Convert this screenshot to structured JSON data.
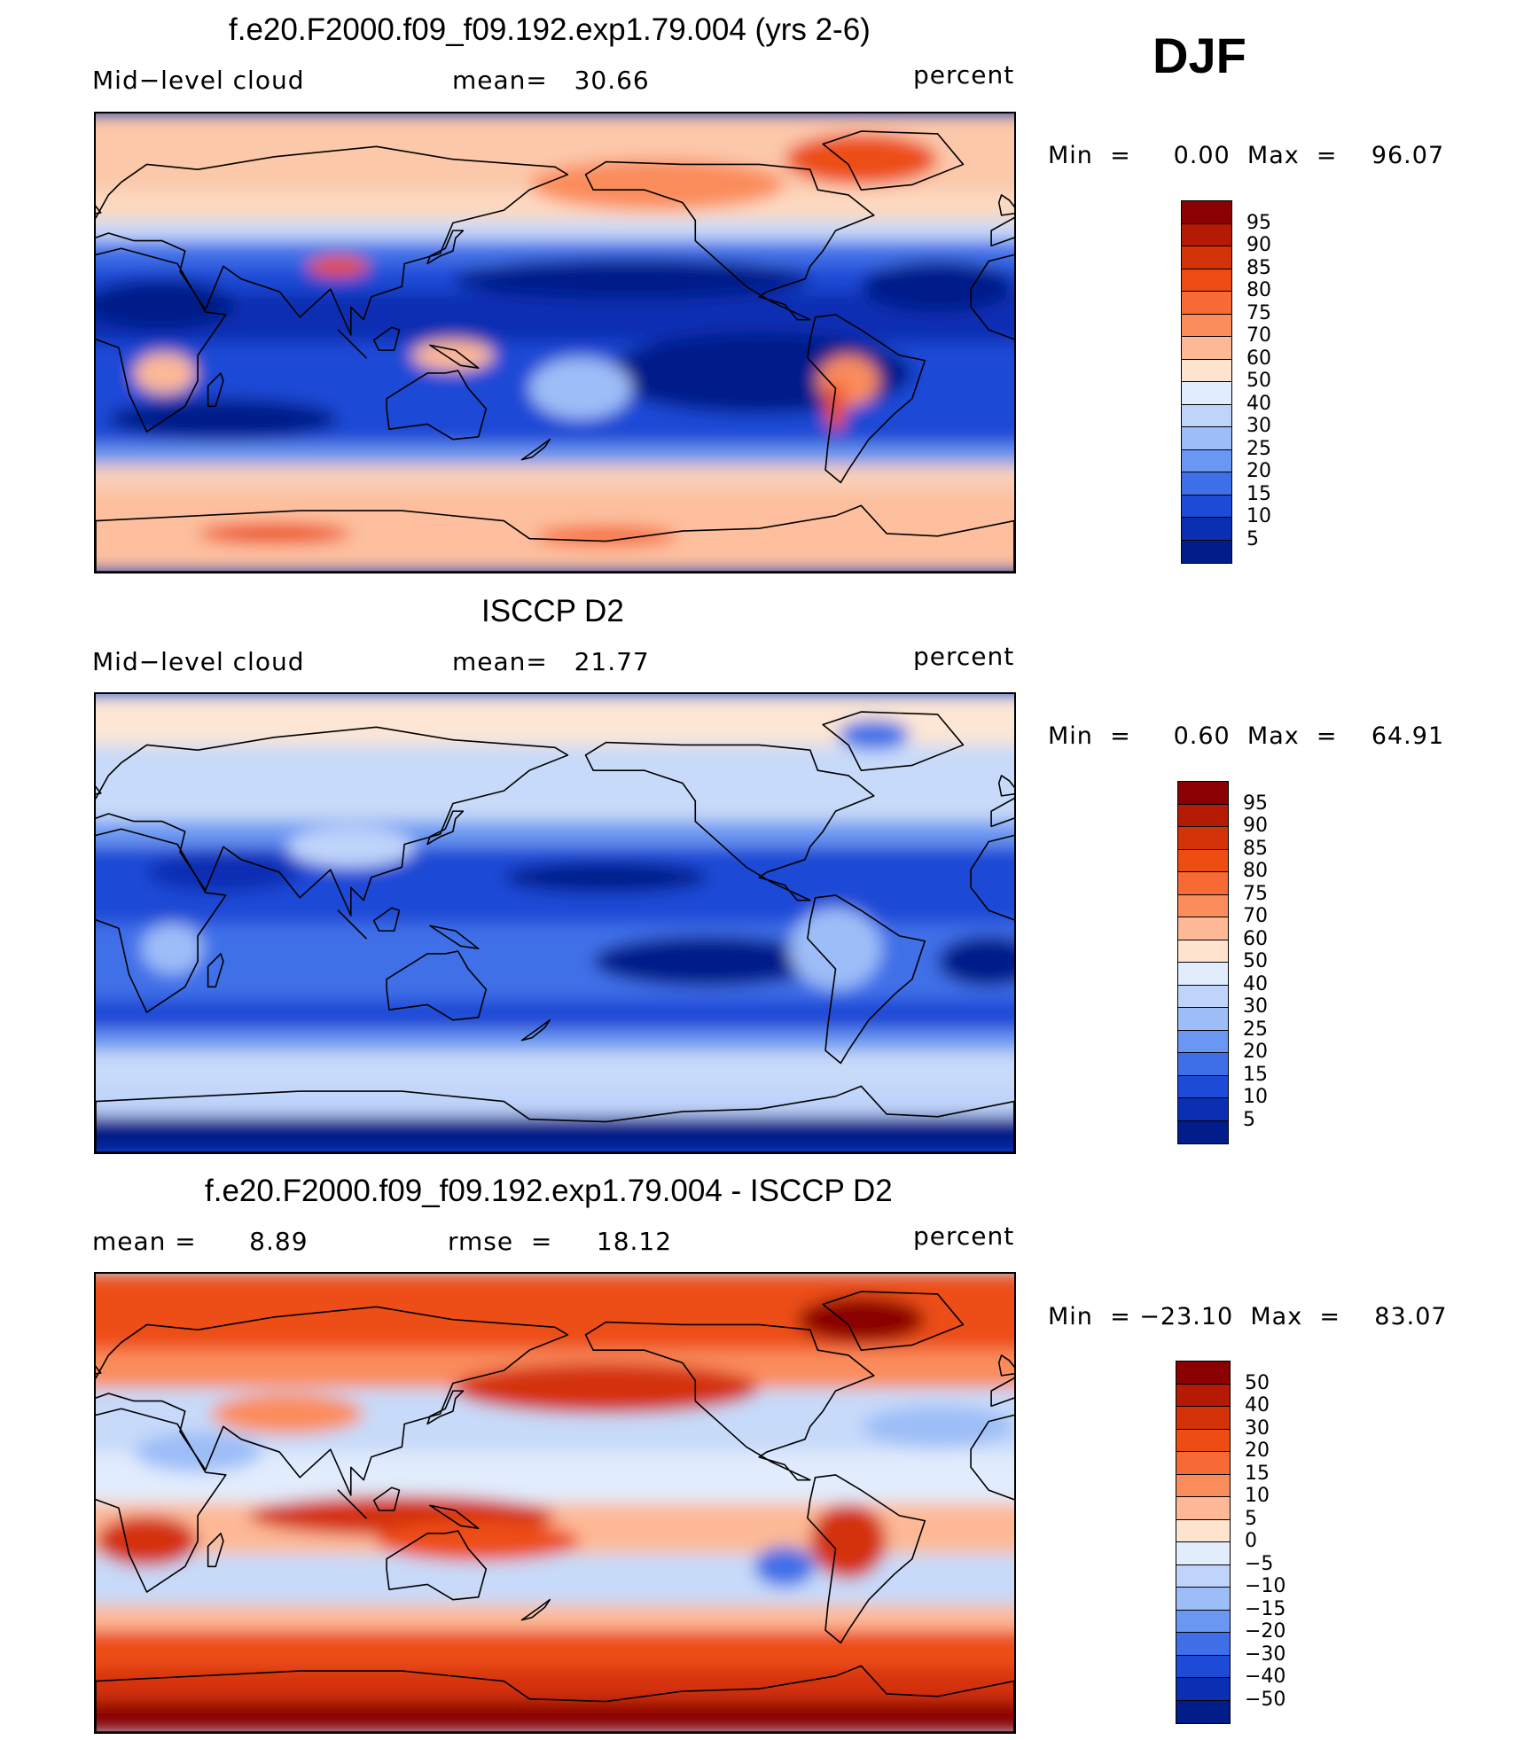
{
  "season": "DJF",
  "panels": [
    {
      "id": "model",
      "title": "f.e20.F2000.f09_f09.192.exp1.79.004 (yrs 2-6)",
      "left_label": "Mid−level cloud",
      "center_label": "mean=   30.66",
      "right_label": "percent",
      "minmax": "Min  =     0.00  Max  =    96.07",
      "colorbar_levels": [
        "95",
        "90",
        "85",
        "80",
        "75",
        "70",
        "60",
        "50",
        "40",
        "30",
        "25",
        "20",
        "15",
        "10",
        "5"
      ],
      "colorbar_colors": [
        "#8b0000",
        "#b51a05",
        "#d43208",
        "#ed4d13",
        "#f76a35",
        "#fb8c5c",
        "#fdb996",
        "#fee4cf",
        "#e1ecfd",
        "#bfd4fb",
        "#9dbdf8",
        "#6a97f1",
        "#3f6fe8",
        "#1d4ad6",
        "#0b2fb3",
        "#001d8a"
      ],
      "field": {
        "background": "#0b2fb3",
        "bands": [
          {
            "lat0": 90,
            "lat1": 60,
            "color": "#fcc8aa"
          },
          {
            "lat0": 60,
            "lat1": 48,
            "color": "#fdd9c0"
          },
          {
            "lat0": 48,
            "lat1": 40,
            "color": "#c7daf9"
          },
          {
            "lat0": 40,
            "lat1": 30,
            "color": "#3f6fe8"
          },
          {
            "lat0": 30,
            "lat1": 20,
            "color": "#1d4ad6"
          },
          {
            "lat0": 20,
            "lat1": 0,
            "color": "#0b2fb3"
          },
          {
            "lat0": 0,
            "lat1": -20,
            "color": "#1d4ad6"
          },
          {
            "lat0": -20,
            "lat1": -40,
            "color": "#1d4ad6"
          },
          {
            "lat0": -40,
            "lat1": -48,
            "color": "#6a97f1"
          },
          {
            "lat0": -48,
            "lat1": -58,
            "color": "#fbd0b8"
          },
          {
            "lat0": -58,
            "lat1": -90,
            "color": "#fdbf9e"
          }
        ],
        "blobs": [
          {
            "lon": 300,
            "lat": 72,
            "rx": 30,
            "ry": 10,
            "color": "#ed4d13"
          },
          {
            "lon": 220,
            "lat": 62,
            "rx": 50,
            "ry": 10,
            "color": "#fb8c5c"
          },
          {
            "lon": 95,
            "lat": 30,
            "rx": 12,
            "ry": 4,
            "color": "#ed4d13"
          },
          {
            "lon": 210,
            "lat": 25,
            "rx": 70,
            "ry": 8,
            "color": "#001d8a"
          },
          {
            "lon": 260,
            "lat": -12,
            "rx": 60,
            "ry": 16,
            "color": "#001d8a"
          },
          {
            "lon": 295,
            "lat": -15,
            "rx": 12,
            "ry": 10,
            "color": "#fb8c5c"
          },
          {
            "lon": 290,
            "lat": -25,
            "rx": 4,
            "ry": 10,
            "color": "#ed4d13"
          },
          {
            "lon": 27,
            "lat": -12,
            "rx": 12,
            "ry": 8,
            "color": "#fdb996"
          },
          {
            "lon": 140,
            "lat": -5,
            "rx": 16,
            "ry": 6,
            "color": "#fdb996"
          },
          {
            "lon": 190,
            "lat": -18,
            "rx": 20,
            "ry": 12,
            "color": "#9dbdf8"
          },
          {
            "lon": 25,
            "lat": 15,
            "rx": 30,
            "ry": 10,
            "color": "#001d8a"
          },
          {
            "lon": 330,
            "lat": 22,
            "rx": 30,
            "ry": 10,
            "color": "#001d8a"
          },
          {
            "lon": 70,
            "lat": -75,
            "rx": 30,
            "ry": 4,
            "color": "#ed4d13"
          },
          {
            "lon": 200,
            "lat": -76,
            "rx": 28,
            "ry": 4,
            "color": "#f76a35"
          },
          {
            "lon": 50,
            "lat": -30,
            "rx": 45,
            "ry": 8,
            "color": "#001d8a"
          }
        ]
      }
    },
    {
      "id": "obs",
      "title": "ISCCP D2",
      "left_label": "Mid−level cloud",
      "center_label": "mean=   21.77",
      "right_label": "percent",
      "minmax": "Min  =     0.60  Max  =    64.91",
      "colorbar_levels": [
        "95",
        "90",
        "85",
        "80",
        "75",
        "70",
        "60",
        "50",
        "40",
        "30",
        "25",
        "20",
        "15",
        "10",
        "5"
      ],
      "colorbar_colors": [
        "#8b0000",
        "#b51a05",
        "#d43208",
        "#ed4d13",
        "#f76a35",
        "#fb8c5c",
        "#fdb996",
        "#fee4cf",
        "#e1ecfd",
        "#bfd4fb",
        "#9dbdf8",
        "#6a97f1",
        "#3f6fe8",
        "#1d4ad6",
        "#0b2fb3",
        "#001d8a"
      ],
      "field": {
        "background": "#1d4ad6",
        "bands": [
          {
            "lat0": 90,
            "lat1": 70,
            "color": "#fde6d4"
          },
          {
            "lat0": 70,
            "lat1": 40,
            "color": "#c7daf9"
          },
          {
            "lat0": 40,
            "lat1": 30,
            "color": "#6a97f1"
          },
          {
            "lat0": 30,
            "lat1": 0,
            "color": "#1d4ad6"
          },
          {
            "lat0": 0,
            "lat1": -30,
            "color": "#3f6fe8"
          },
          {
            "lat0": -30,
            "lat1": -42,
            "color": "#1d4ad6"
          },
          {
            "lat0": -42,
            "lat1": -50,
            "color": "#6a97f1"
          },
          {
            "lat0": -50,
            "lat1": -66,
            "color": "#c7daf9"
          },
          {
            "lat0": -66,
            "lat1": -76,
            "color": "#bfd4fb"
          },
          {
            "lat0": -76,
            "lat1": -90,
            "color": "#001d8a"
          }
        ],
        "blobs": [
          {
            "lon": 305,
            "lat": 74,
            "rx": 14,
            "ry": 6,
            "color": "#3f6fe8"
          },
          {
            "lon": 200,
            "lat": 18,
            "rx": 40,
            "ry": 6,
            "color": "#001d8a"
          },
          {
            "lon": 240,
            "lat": -15,
            "rx": 45,
            "ry": 10,
            "color": "#001d8a"
          },
          {
            "lon": 350,
            "lat": -15,
            "rx": 20,
            "ry": 10,
            "color": "#001d8a"
          },
          {
            "lon": 100,
            "lat": 30,
            "rx": 25,
            "ry": 8,
            "color": "#bfd4fb"
          },
          {
            "lon": 290,
            "lat": -10,
            "rx": 18,
            "ry": 16,
            "color": "#9dbdf8"
          },
          {
            "lon": 30,
            "lat": -10,
            "rx": 12,
            "ry": 10,
            "color": "#9dbdf8"
          },
          {
            "lon": 50,
            "lat": 20,
            "rx": 30,
            "ry": 8,
            "color": "#0b2fb3"
          }
        ]
      }
    },
    {
      "id": "diff",
      "title": "f.e20.F2000.f09_f09.192.exp1.79.004 - ISCCP D2",
      "left_label": "mean =      8.89",
      "center_label": "rmse  =     18.12",
      "right_label": "percent",
      "minmax": "Min  = −23.10  Max  =    83.07",
      "colorbar_levels": [
        "50",
        "40",
        "30",
        "20",
        "15",
        "10",
        "5",
        "0",
        "−5",
        "−10",
        "−15",
        "−20",
        "−30",
        "−40",
        "−50"
      ],
      "colorbar_colors": [
        "#8b0000",
        "#b51a05",
        "#d43208",
        "#ed4d13",
        "#f76a35",
        "#fb8c5c",
        "#fdb996",
        "#fee4cf",
        "#e1ecfd",
        "#bfd4fb",
        "#9dbdf8",
        "#6a97f1",
        "#3f6fe8",
        "#1d4ad6",
        "#0b2fb3",
        "#001d8a"
      ],
      "field": {
        "background": "#c7daf9",
        "bands": [
          {
            "lat0": 90,
            "lat1": 60,
            "color": "#ed4d13"
          },
          {
            "lat0": 60,
            "lat1": 45,
            "color": "#fb8c5c"
          },
          {
            "lat0": 45,
            "lat1": 20,
            "color": "#c7daf9"
          },
          {
            "lat0": 20,
            "lat1": 0,
            "color": "#e1ecfd"
          },
          {
            "lat0": 0,
            "lat1": -20,
            "color": "#fdb996"
          },
          {
            "lat0": -20,
            "lat1": -40,
            "color": "#c7daf9"
          },
          {
            "lat0": -40,
            "lat1": -50,
            "color": "#fdb996"
          },
          {
            "lat0": -50,
            "lat1": -65,
            "color": "#ed4d13"
          },
          {
            "lat0": -65,
            "lat1": -78,
            "color": "#d43208"
          },
          {
            "lat0": -78,
            "lat1": -90,
            "color": "#8b0000"
          }
        ],
        "blobs": [
          {
            "lon": 300,
            "lat": 72,
            "rx": 25,
            "ry": 9,
            "color": "#8b0000"
          },
          {
            "lon": 200,
            "lat": 45,
            "rx": 60,
            "ry": 10,
            "color": "#d43208"
          },
          {
            "lon": 120,
            "lat": -5,
            "rx": 60,
            "ry": 8,
            "color": "#d43208"
          },
          {
            "lon": 150,
            "lat": -15,
            "rx": 40,
            "ry": 8,
            "color": "#ed4d13"
          },
          {
            "lon": 20,
            "lat": -15,
            "rx": 20,
            "ry": 10,
            "color": "#d43208"
          },
          {
            "lon": 295,
            "lat": -15,
            "rx": 15,
            "ry": 15,
            "color": "#d43208"
          },
          {
            "lon": 75,
            "lat": 35,
            "rx": 30,
            "ry": 8,
            "color": "#fb8c5c"
          },
          {
            "lon": 270,
            "lat": -25,
            "rx": 12,
            "ry": 8,
            "color": "#3f6fe8"
          },
          {
            "lon": 40,
            "lat": 20,
            "rx": 25,
            "ry": 8,
            "color": "#9dbdf8"
          },
          {
            "lon": 330,
            "lat": 30,
            "rx": 30,
            "ry": 8,
            "color": "#9dbdf8"
          }
        ]
      }
    }
  ]
}
